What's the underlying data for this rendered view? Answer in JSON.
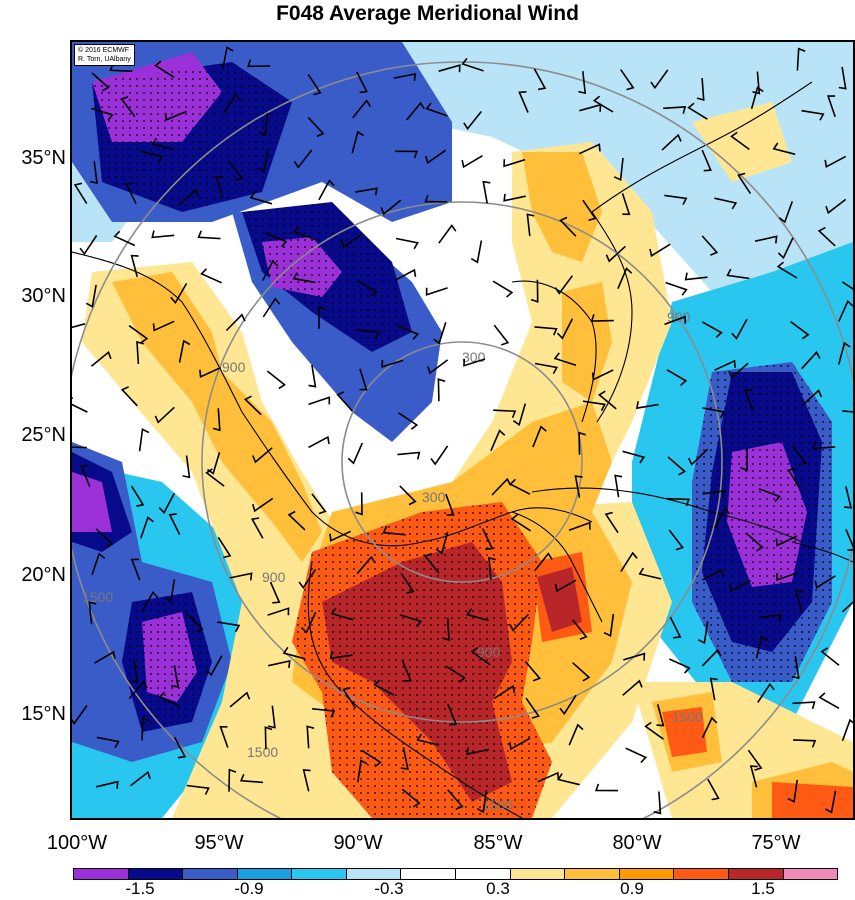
{
  "title": "F048 Average Meridional Wind",
  "credit": {
    "line1": "© 2016 ECMWF",
    "line2": "R. Torn, UAlbany"
  },
  "lat_labels": [
    "35°N",
    "30°N",
    "25°N",
    "20°N",
    "15°N"
  ],
  "lon_labels": [
    "100°W",
    "95°W",
    "90°W",
    "85°W",
    "80°W",
    "75°W"
  ],
  "contour_labels": [
    "300",
    "300",
    "900",
    "900",
    "900",
    "900",
    "1500",
    "1500",
    "1500",
    "1500"
  ],
  "colorbar": {
    "labels": [
      "-1.5",
      "-0.9",
      "-0.3",
      "0.3",
      "0.9",
      "1.5"
    ],
    "colors": [
      "#9b30d8",
      "#070a8a",
      "#3a5cc8",
      "#1aa0e0",
      "#29c6f0",
      "#b9e4f8",
      "#ffffff",
      "#ffffff",
      "#ffe692",
      "#ffbf3a",
      "#ff9a00",
      "#ff5a14",
      "#b8262a",
      "#f08ab8"
    ]
  }
}
